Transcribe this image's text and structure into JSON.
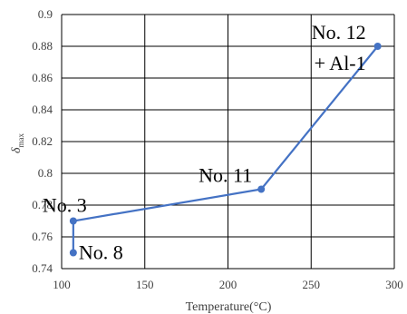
{
  "chart_data": {
    "type": "line",
    "title": "",
    "xlabel": "Temperature(°C)",
    "ylabel_main": "δ",
    "ylabel_sub": "max",
    "xlim": [
      100,
      300
    ],
    "ylim": [
      0.74,
      0.9
    ],
    "x_ticks": [
      100,
      150,
      200,
      250,
      300
    ],
    "x_tick_labels": [
      "100",
      "150",
      "200",
      "250",
      "300"
    ],
    "y_ticks": [
      0.74,
      0.76,
      0.78,
      0.8,
      0.82,
      0.84,
      0.86,
      0.88,
      0.9
    ],
    "y_tick_labels": [
      "0.74",
      "0.76",
      "0.78",
      "0.8",
      "0.82",
      "0.84",
      "0.86",
      "0.88",
      "0.9"
    ],
    "grid": true,
    "series_color": "#4472C4",
    "points": [
      {
        "x": 107,
        "y": 0.75,
        "label": "No. 8"
      },
      {
        "x": 107,
        "y": 0.77,
        "label": "No. 3"
      },
      {
        "x": 220,
        "y": 0.79,
        "label": "No. 11"
      },
      {
        "x": 290,
        "y": 0.88,
        "label": "No. 12"
      }
    ],
    "annotations": [
      {
        "text": "No. 8",
        "x": 107,
        "y": 0.75
      },
      {
        "text": "No. 3",
        "x": 107,
        "y": 0.77
      },
      {
        "text": "No. 11",
        "x": 220,
        "y": 0.79
      },
      {
        "text": "No. 12",
        "x": 290,
        "y": 0.88
      },
      {
        "text": "+ Al-1",
        "x": 290,
        "y": 0.88
      }
    ]
  }
}
